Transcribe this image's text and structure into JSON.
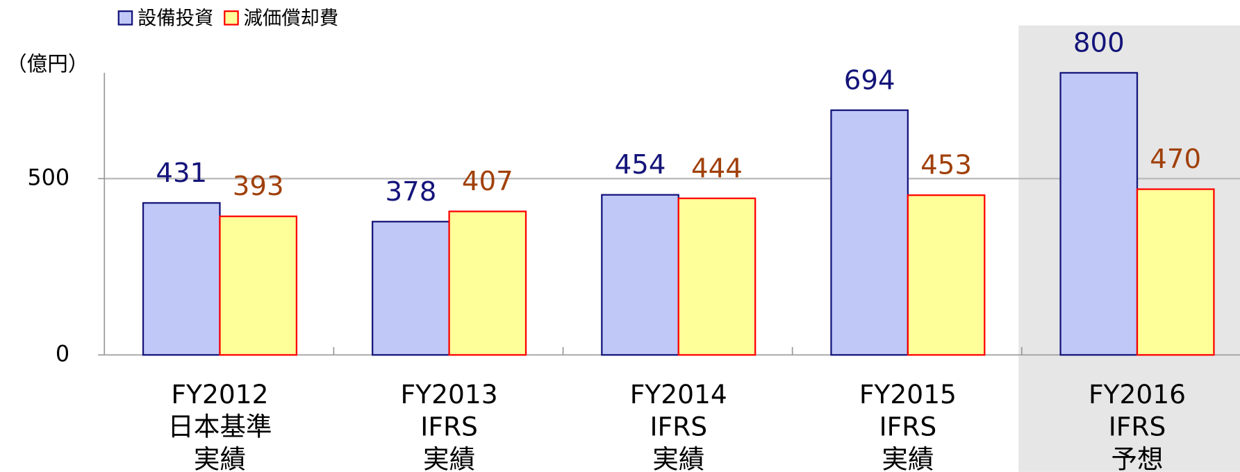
{
  "chart_data": {
    "type": "bar",
    "y_unit_label": "（億円）",
    "categories": [
      [
        "FY2012",
        "日本基準",
        "実績"
      ],
      [
        "FY2013",
        "IFRS",
        "実績"
      ],
      [
        "FY2014",
        "IFRS",
        "実績"
      ],
      [
        "FY2015",
        "IFRS",
        "実績"
      ],
      [
        "FY2016",
        "IFRS",
        "予想"
      ]
    ],
    "series": [
      {
        "name": "設備投資",
        "color": "#c0c8f8",
        "edge_color": "#14147a",
        "label_color": "#14147a",
        "values": [
          431,
          378,
          454,
          694,
          800
        ]
      },
      {
        "name": "減価償却費",
        "color": "#ffff99",
        "edge_color": "#ff0000",
        "label_color": "#a0400a",
        "values": [
          393,
          407,
          444,
          453,
          470
        ]
      }
    ],
    "ylim": [
      0,
      800
    ],
    "yticks": [
      0,
      500
    ],
    "grid": true,
    "legend": "top-left"
  }
}
